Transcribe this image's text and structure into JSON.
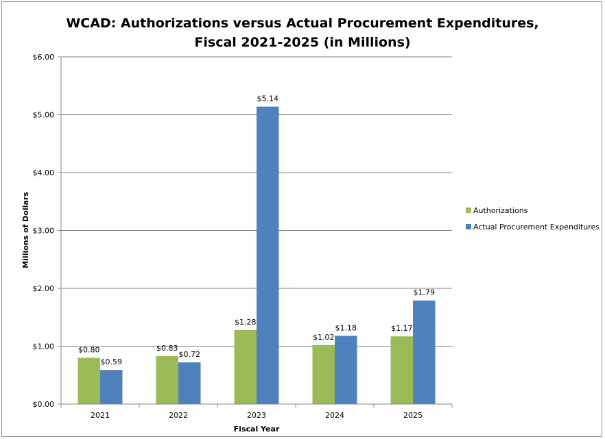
{
  "chart_data": {
    "type": "bar",
    "title_line1": "WCAD: Authorizations versus Actual Procurement Expenditures,",
    "title_line2": "Fiscal 2021-2025 (in Millions)",
    "xlabel": "Fiscal Year",
    "ylabel": "Millions of Dollars",
    "categories": [
      "2021",
      "2022",
      "2023",
      "2024",
      "2025"
    ],
    "ylim": [
      0,
      6
    ],
    "yticks": [
      0,
      1,
      2,
      3,
      4,
      5,
      6
    ],
    "ytick_labels": [
      "$0.00",
      "$1.00",
      "$2.00",
      "$3.00",
      "$4.00",
      "$5.00",
      "$6.00"
    ],
    "grid": true,
    "legend_position": "right",
    "series": [
      {
        "name": "Authorizations",
        "color": "#9bbb59",
        "values": [
          0.8,
          0.83,
          1.28,
          1.02,
          1.17
        ],
        "labels": [
          "$0.80",
          "$0.83",
          "$1.28",
          "$1.02",
          "$1.17"
        ]
      },
      {
        "name": "Actual Procurement Expenditures",
        "color": "#4f81bd",
        "values": [
          0.59,
          0.72,
          5.14,
          1.18,
          1.79
        ],
        "labels": [
          "$0.59",
          "$0.72",
          "$5.14",
          "$1.18",
          "$1.79"
        ]
      }
    ]
  }
}
